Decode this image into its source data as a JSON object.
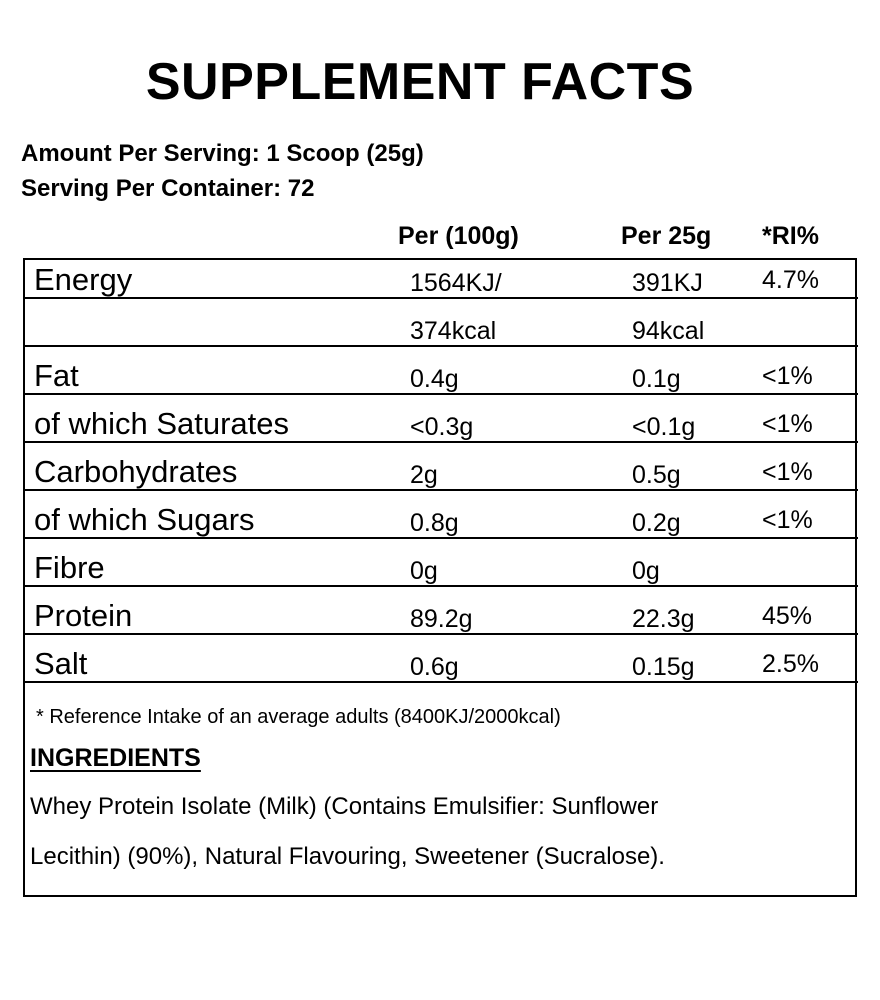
{
  "title": "SUPPLEMENT FACTS",
  "serving": [
    "Amount Per Serving: 1 Scoop (25g)",
    "Serving Per Container: 72"
  ],
  "table": {
    "headers": {
      "per_100g": "Per (100g)",
      "per_25g": "Per 25g",
      "ri": "*RI%"
    },
    "rows": [
      {
        "label": "Energy",
        "per_100g": "1564KJ/",
        "per_25g": "391KJ",
        "ri": "4.7%"
      },
      {
        "per_100g": "374kcal",
        "per_25g": "94kcal"
      },
      {
        "label": "Fat",
        "per_100g": "0.4g",
        "per_25g": "0.1g",
        "ri": "<1%"
      },
      {
        "label": "of which Saturates",
        "per_100g": "<0.3g",
        "per_25g": "<0.1g",
        "ri": "<1%"
      },
      {
        "label": "Carbohydrates",
        "per_100g": "2g",
        "per_25g": "0.5g",
        "ri": "<1%"
      },
      {
        "label": "of which Sugars",
        "per_100g": "0.8g",
        "per_25g": "0.2g",
        "ri": "<1%"
      },
      {
        "label": "Fibre",
        "per_100g": "0g",
        "per_25g": "0g"
      },
      {
        "label": "Protein",
        "per_100g": "89.2g",
        "per_25g": "22.3g",
        "ri": "45%"
      },
      {
        "label": "Salt",
        "per_100g": "0.6g",
        "per_25g": "0.15g",
        "ri": "2.5%"
      }
    ],
    "footnote": "* Reference Intake of an average adults (8400KJ/2000kcal)"
  },
  "ingredients": {
    "heading": "INGREDIENTS",
    "lines": [
      "Whey Protein Isolate (Milk) (Contains Emulsifier: Sunflower",
      "Lecithin) (90%), Natural Flavouring, Sweetener (Sucralose)."
    ]
  }
}
